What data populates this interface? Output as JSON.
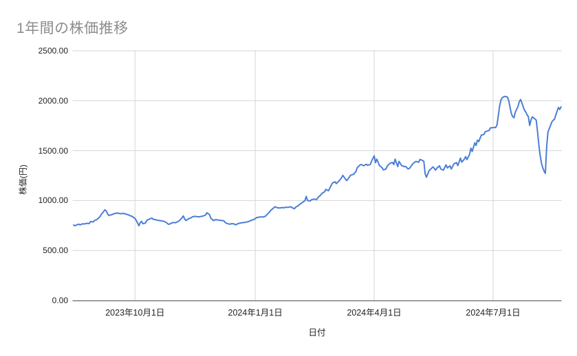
{
  "chart_data": {
    "type": "line",
    "title": "1年間の株価推移",
    "xlabel": "日付",
    "ylabel": "株価(円)",
    "ylim": [
      0,
      2500
    ],
    "xlim_days": [
      0,
      373
    ],
    "grid": true,
    "legend": "none",
    "y_ticks": [
      {
        "value": 0,
        "label": "0.00"
      },
      {
        "value": 500,
        "label": "500.00"
      },
      {
        "value": 1000,
        "label": "1000.00"
      },
      {
        "value": 1500,
        "label": "1500.00"
      },
      {
        "value": 2000,
        "label": "2000.00"
      },
      {
        "value": 2500,
        "label": "2500.00"
      }
    ],
    "x_ticks": [
      {
        "day": 47,
        "label": "2023年10月1日"
      },
      {
        "day": 139,
        "label": "2024年1月1日"
      },
      {
        "day": 230,
        "label": "2024年4月1日"
      },
      {
        "day": 321,
        "label": "2024年7月1日"
      }
    ],
    "series": [
      {
        "name": "株価",
        "color": "#4a7dd6",
        "points": [
          [
            0,
            755
          ],
          [
            1,
            748
          ],
          [
            3,
            760
          ],
          [
            4,
            763
          ],
          [
            5,
            757
          ],
          [
            7,
            768
          ],
          [
            8,
            765
          ],
          [
            10,
            772
          ],
          [
            12,
            770
          ],
          [
            13,
            790
          ],
          [
            15,
            786
          ],
          [
            16,
            800
          ],
          [
            18,
            812
          ],
          [
            20,
            835
          ],
          [
            21,
            858
          ],
          [
            23,
            890
          ],
          [
            24,
            908
          ],
          [
            25,
            895
          ],
          [
            26,
            868
          ],
          [
            27,
            850
          ],
          [
            29,
            858
          ],
          [
            31,
            868
          ],
          [
            32,
            872
          ],
          [
            34,
            875
          ],
          [
            35,
            870
          ],
          [
            37,
            868
          ],
          [
            38,
            872
          ],
          [
            40,
            865
          ],
          [
            42,
            858
          ],
          [
            43,
            850
          ],
          [
            45,
            840
          ],
          [
            46,
            830
          ],
          [
            47,
            822
          ],
          [
            48,
            800
          ],
          [
            50,
            748
          ],
          [
            51,
            780
          ],
          [
            52,
            792
          ],
          [
            53,
            768
          ],
          [
            55,
            775
          ],
          [
            56,
            800
          ],
          [
            58,
            815
          ],
          [
            60,
            825
          ],
          [
            61,
            812
          ],
          [
            63,
            808
          ],
          [
            64,
            803
          ],
          [
            66,
            800
          ],
          [
            67,
            797
          ],
          [
            69,
            793
          ],
          [
            71,
            780
          ],
          [
            72,
            768
          ],
          [
            73,
            762
          ],
          [
            75,
            775
          ],
          [
            76,
            780
          ],
          [
            78,
            778
          ],
          [
            80,
            790
          ],
          [
            81,
            800
          ],
          [
            83,
            828
          ],
          [
            84,
            846
          ],
          [
            85,
            815
          ],
          [
            86,
            800
          ],
          [
            88,
            818
          ],
          [
            90,
            828
          ],
          [
            91,
            838
          ],
          [
            93,
            842
          ],
          [
            94,
            840
          ],
          [
            96,
            837
          ],
          [
            98,
            842
          ],
          [
            99,
            845
          ],
          [
            101,
            855
          ],
          [
            102,
            878
          ],
          [
            104,
            860
          ],
          [
            105,
            825
          ],
          [
            107,
            800
          ],
          [
            109,
            810
          ],
          [
            110,
            806
          ],
          [
            112,
            803
          ],
          [
            113,
            800
          ],
          [
            115,
            798
          ],
          [
            116,
            780
          ],
          [
            118,
            768
          ],
          [
            120,
            763
          ],
          [
            121,
            770
          ],
          [
            123,
            765
          ],
          [
            124,
            757
          ],
          [
            126,
            770
          ],
          [
            128,
            776
          ],
          [
            129,
            778
          ],
          [
            131,
            781
          ],
          [
            132,
            784
          ],
          [
            134,
            790
          ],
          [
            135,
            797
          ],
          [
            137,
            806
          ],
          [
            139,
            818
          ],
          [
            140,
            830
          ],
          [
            142,
            834
          ],
          [
            143,
            837
          ],
          [
            145,
            835
          ],
          [
            147,
            845
          ],
          [
            148,
            860
          ],
          [
            150,
            885
          ],
          [
            151,
            903
          ],
          [
            153,
            925
          ],
          [
            154,
            938
          ],
          [
            156,
            928
          ],
          [
            158,
            925
          ],
          [
            159,
            930
          ],
          [
            161,
            928
          ],
          [
            162,
            933
          ],
          [
            164,
            932
          ],
          [
            166,
            938
          ],
          [
            167,
            930
          ],
          [
            169,
            918
          ],
          [
            170,
            935
          ],
          [
            172,
            950
          ],
          [
            173,
            962
          ],
          [
            175,
            980
          ],
          [
            177,
            1000
          ],
          [
            178,
            1042
          ],
          [
            179,
            1000
          ],
          [
            181,
            996
          ],
          [
            182,
            1008
          ],
          [
            184,
            1015
          ],
          [
            186,
            1010
          ],
          [
            187,
            1030
          ],
          [
            189,
            1055
          ],
          [
            190,
            1072
          ],
          [
            192,
            1088
          ],
          [
            193,
            1112
          ],
          [
            195,
            1098
          ],
          [
            197,
            1150
          ],
          [
            198,
            1175
          ],
          [
            200,
            1188
          ],
          [
            201,
            1170
          ],
          [
            203,
            1195
          ],
          [
            205,
            1228
          ],
          [
            206,
            1252
          ],
          [
            208,
            1215
          ],
          [
            209,
            1200
          ],
          [
            211,
            1235
          ],
          [
            212,
            1255
          ],
          [
            214,
            1262
          ],
          [
            216,
            1290
          ],
          [
            217,
            1328
          ],
          [
            219,
            1355
          ],
          [
            220,
            1362
          ],
          [
            222,
            1348
          ],
          [
            224,
            1365
          ],
          [
            225,
            1352
          ],
          [
            227,
            1362
          ],
          [
            228,
            1395
          ],
          [
            230,
            1448
          ],
          [
            231,
            1380
          ],
          [
            232,
            1415
          ],
          [
            234,
            1350
          ],
          [
            236,
            1330
          ],
          [
            237,
            1308
          ],
          [
            239,
            1315
          ],
          [
            240,
            1345
          ],
          [
            242,
            1372
          ],
          [
            244,
            1382
          ],
          [
            245,
            1360
          ],
          [
            246,
            1415
          ],
          [
            248,
            1340
          ],
          [
            249,
            1392
          ],
          [
            251,
            1350
          ],
          [
            253,
            1340
          ],
          [
            254,
            1342
          ],
          [
            256,
            1316
          ],
          [
            257,
            1322
          ],
          [
            259,
            1358
          ],
          [
            260,
            1375
          ],
          [
            262,
            1392
          ],
          [
            264,
            1383
          ],
          [
            265,
            1412
          ],
          [
            267,
            1402
          ],
          [
            268,
            1392
          ],
          [
            269,
            1268
          ],
          [
            270,
            1234
          ],
          [
            272,
            1300
          ],
          [
            274,
            1325
          ],
          [
            275,
            1337
          ],
          [
            277,
            1305
          ],
          [
            278,
            1325
          ],
          [
            280,
            1348
          ],
          [
            281,
            1315
          ],
          [
            283,
            1305
          ],
          [
            285,
            1358
          ],
          [
            286,
            1327
          ],
          [
            288,
            1348
          ],
          [
            289,
            1316
          ],
          [
            291,
            1368
          ],
          [
            293,
            1380
          ],
          [
            294,
            1350
          ],
          [
            296,
            1425
          ],
          [
            297,
            1385
          ],
          [
            299,
            1415
          ],
          [
            300,
            1440
          ],
          [
            301,
            1410
          ],
          [
            303,
            1462
          ],
          [
            304,
            1525
          ],
          [
            305,
            1492
          ],
          [
            307,
            1578
          ],
          [
            308,
            1552
          ],
          [
            309,
            1605
          ],
          [
            310,
            1590
          ],
          [
            312,
            1655
          ],
          [
            314,
            1662
          ],
          [
            315,
            1690
          ],
          [
            317,
            1698
          ],
          [
            318,
            1702
          ],
          [
            319,
            1728
          ],
          [
            321,
            1730
          ],
          [
            323,
            1733
          ],
          [
            324,
            1758
          ],
          [
            325,
            1850
          ],
          [
            326,
            1948
          ],
          [
            327,
            2005
          ],
          [
            328,
            2030
          ],
          [
            329,
            2038
          ],
          [
            330,
            2043
          ],
          [
            331,
            2040
          ],
          [
            332,
            2035
          ],
          [
            333,
            2000
          ],
          [
            334,
            1930
          ],
          [
            335,
            1870
          ],
          [
            336,
            1840
          ],
          [
            337,
            1830
          ],
          [
            338,
            1885
          ],
          [
            340,
            1940
          ],
          [
            341,
            1988
          ],
          [
            342,
            2012
          ],
          [
            343,
            1980
          ],
          [
            344,
            1940
          ],
          [
            345,
            1905
          ],
          [
            346,
            1888
          ],
          [
            347,
            1858
          ],
          [
            348,
            1840
          ],
          [
            349,
            1752
          ],
          [
            350,
            1808
          ],
          [
            351,
            1838
          ],
          [
            352,
            1828
          ],
          [
            353,
            1818
          ],
          [
            354,
            1805
          ],
          [
            355,
            1690
          ],
          [
            356,
            1560
          ],
          [
            357,
            1455
          ],
          [
            358,
            1375
          ],
          [
            359,
            1330
          ],
          [
            360,
            1295
          ],
          [
            361,
            1272
          ],
          [
            362,
            1540
          ],
          [
            363,
            1688
          ],
          [
            364,
            1720
          ],
          [
            365,
            1755
          ],
          [
            366,
            1788
          ],
          [
            367,
            1805
          ],
          [
            368,
            1815
          ],
          [
            369,
            1858
          ],
          [
            370,
            1895
          ],
          [
            371,
            1932
          ],
          [
            372,
            1912
          ],
          [
            373,
            1938
          ]
        ]
      }
    ]
  },
  "colors": {
    "line": "#4a7dd6",
    "grid": "#d5d5d5",
    "axis_line": "#666666",
    "title": "#8c8c8c",
    "tick_label": "#222222",
    "axis_title": "#222222",
    "background": "#ffffff"
  }
}
